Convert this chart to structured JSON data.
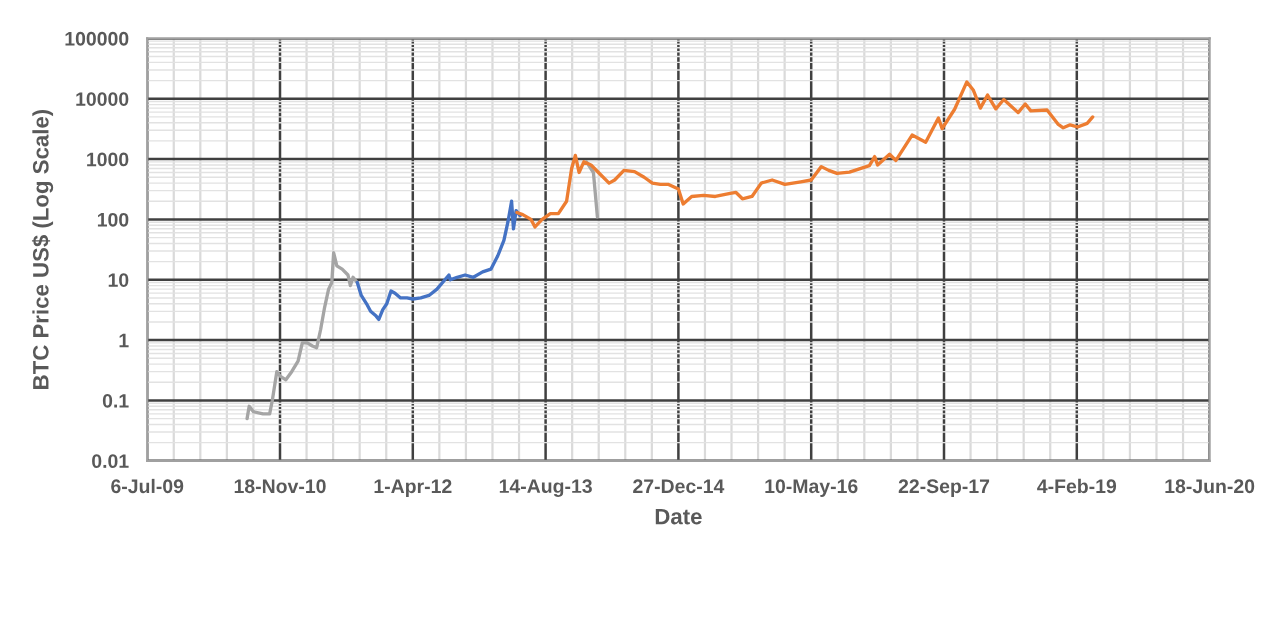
{
  "chart_data": {
    "type": "line",
    "xlabel": "Date",
    "ylabel": "BTC Price US$ (Log Scale)",
    "log": "y",
    "grid": true,
    "xlim": [
      "2009-07-06",
      "2020-06-18"
    ],
    "xticks": [
      {
        "value": "2009-07-06",
        "label": "6-Jul-09"
      },
      {
        "value": "2010-11-18",
        "label": "18-Nov-10"
      },
      {
        "value": "2012-04-01",
        "label": "1-Apr-12"
      },
      {
        "value": "2013-08-14",
        "label": "14-Aug-13"
      },
      {
        "value": "2014-12-27",
        "label": "27-Dec-14"
      },
      {
        "value": "2016-05-10",
        "label": "10-May-16"
      },
      {
        "value": "2017-09-22",
        "label": "22-Sep-17"
      },
      {
        "value": "2019-02-04",
        "label": "4-Feb-19"
      },
      {
        "value": "2020-06-18",
        "label": "18-Jun-20"
      }
    ],
    "ylim": [
      0.01,
      100000
    ],
    "yticks": [
      0.01,
      0.1,
      1,
      10,
      100,
      1000,
      10000,
      100000
    ],
    "series": [
      {
        "color": "#a5a5a5",
        "x": [
          "2010-07-17",
          "2010-07-25",
          "2010-08-10",
          "2010-09-15",
          "2010-10-10",
          "2010-10-20",
          "2010-11-06",
          "2010-11-20",
          "2010-12-10",
          "2011-01-01",
          "2011-01-25",
          "2011-02-10",
          "2011-03-01",
          "2011-03-20",
          "2011-04-05",
          "2011-04-20",
          "2011-05-05",
          "2011-05-20",
          "2011-06-01",
          "2011-06-08",
          "2011-06-20",
          "2011-07-10",
          "2011-08-01",
          "2011-08-10",
          "2011-08-20",
          "2011-09-05",
          "2012-06-01",
          "2014-01-15",
          "2014-02-10",
          "2014-02-25"
        ],
        "values": [
          0.05,
          0.08,
          0.065,
          0.06,
          0.06,
          0.1,
          0.3,
          0.25,
          0.22,
          0.3,
          0.45,
          0.9,
          0.9,
          0.8,
          0.75,
          1.5,
          3.5,
          7,
          9,
          28,
          17,
          15,
          12,
          8,
          11,
          9,
          null,
          900,
          600,
          110
        ]
      },
      {
        "color": "#4472c4",
        "x": [
          "2011-09-05",
          "2011-09-20",
          "2011-10-10",
          "2011-10-25",
          "2011-11-15",
          "2011-11-25",
          "2011-12-10",
          "2011-12-25",
          "2012-01-10",
          "2012-01-25",
          "2012-02-15",
          "2012-03-10",
          "2012-04-01",
          "2012-05-01",
          "2012-06-01",
          "2012-07-01",
          "2012-08-15",
          "2012-08-20",
          "2012-09-15",
          "2012-10-15",
          "2012-11-15",
          "2012-12-20",
          "2013-01-20",
          "2013-02-15",
          "2013-03-10",
          "2013-03-25",
          "2013-04-08",
          "2013-04-15",
          "2013-04-25",
          "2013-05-10"
        ],
        "values": [
          9,
          5.5,
          4,
          3,
          2.5,
          2.2,
          3.2,
          4,
          6.5,
          6,
          5,
          5,
          4.8,
          5,
          5.5,
          7,
          12,
          10,
          11,
          12,
          11,
          13.5,
          15,
          25,
          45,
          90,
          200,
          70,
          140,
          115
        ]
      },
      {
        "color": "#ed7d31",
        "x": [
          "2013-04-28",
          "2013-05-20",
          "2013-06-20",
          "2013-07-05",
          "2013-08-01",
          "2013-09-01",
          "2013-10-01",
          "2013-11-01",
          "2013-11-20",
          "2013-12-04",
          "2013-12-18",
          "2014-01-05",
          "2014-02-01",
          "2014-03-01",
          "2014-04-10",
          "2014-05-01",
          "2014-06-05",
          "2014-07-15",
          "2014-08-20",
          "2014-09-20",
          "2014-10-20",
          "2014-11-20",
          "2014-12-27",
          "2015-01-14",
          "2015-02-15",
          "2015-04-01",
          "2015-05-15",
          "2015-07-10",
          "2015-08-01",
          "2015-08-25",
          "2015-09-30",
          "2015-11-04",
          "2015-12-15",
          "2016-02-01",
          "2016-04-01",
          "2016-05-10",
          "2016-06-17",
          "2016-07-15",
          "2016-08-15",
          "2016-10-01",
          "2016-12-15",
          "2017-01-04",
          "2017-01-15",
          "2017-03-01",
          "2017-03-25",
          "2017-05-25",
          "2017-07-15",
          "2017-09-01",
          "2017-09-15",
          "2017-11-01",
          "2017-12-17",
          "2018-01-10",
          "2018-02-06",
          "2018-03-05",
          "2018-04-05",
          "2018-05-05",
          "2018-06-28",
          "2018-07-25",
          "2018-08-15",
          "2018-10-15",
          "2018-11-25",
          "2018-12-15",
          "2019-01-10",
          "2019-02-07",
          "2019-03-15",
          "2019-04-05"
        ],
        "values": [
          130,
          120,
          100,
          75,
          100,
          125,
          125,
          200,
          700,
          1150,
          600,
          900,
          800,
          600,
          400,
          450,
          650,
          620,
          500,
          400,
          380,
          380,
          320,
          180,
          240,
          250,
          240,
          270,
          280,
          220,
          240,
          400,
          450,
          380,
          420,
          450,
          750,
          650,
          580,
          610,
          780,
          1100,
          800,
          1200,
          950,
          2500,
          1900,
          4800,
          3200,
          6700,
          19000,
          14000,
          7000,
          11500,
          6800,
          9700,
          5900,
          8200,
          6300,
          6500,
          3800,
          3300,
          3700,
          3400,
          3900,
          5000
        ]
      }
    ]
  }
}
